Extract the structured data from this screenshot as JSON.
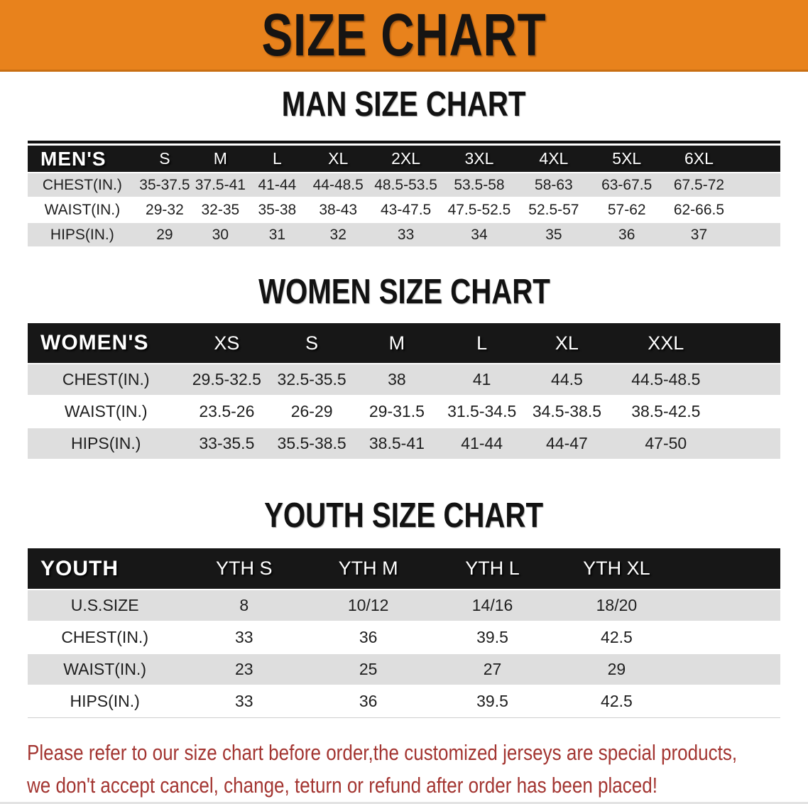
{
  "theme": {
    "banner_bg": "#E8821C",
    "banner_text": "#161413",
    "header_bg": "#171717",
    "header_text": "#FFFFFF",
    "row_gray": "#DEDEDE",
    "disclaimer_red": "#A33531"
  },
  "banner": {
    "title": "SIZE CHART"
  },
  "sections": {
    "men": {
      "title": "MAN SIZE CHART",
      "table": {
        "label": "MEN'S",
        "columns": [
          "S",
          "M",
          "L",
          "XL",
          "2XL",
          "3XL",
          "4XL",
          "5XL",
          "6XL"
        ],
        "rows": [
          {
            "label": "CHEST(IN.)",
            "shade": "gray",
            "values": [
              "35-37.5",
              "37.5-41",
              "41-44",
              "44-48.5",
              "48.5-53.5",
              "53.5-58",
              "58-63",
              "63-67.5",
              "67.5-72"
            ]
          },
          {
            "label": "WAIST(IN.)",
            "shade": "white",
            "values": [
              "29-32",
              "32-35",
              "35-38",
              "38-43",
              "43-47.5",
              "47.5-52.5",
              "52.5-57",
              "57-62",
              "62-66.5"
            ]
          },
          {
            "label": "HIPS(IN.)",
            "shade": "gray",
            "values": [
              "29",
              "30",
              "31",
              "32",
              "33",
              "34",
              "35",
              "36",
              "37"
            ]
          }
        ]
      }
    },
    "women": {
      "title": "WOMEN SIZE CHART",
      "table": {
        "label": "WOMEN'S",
        "columns": [
          "XS",
          "S",
          "M",
          "L",
          "XL",
          "XXL"
        ],
        "rows": [
          {
            "label": "CHEST(IN.)",
            "shade": "gray",
            "values": [
              "29.5-32.5",
              "32.5-35.5",
              "38",
              "41",
              "44.5",
              "44.5-48.5"
            ]
          },
          {
            "label": "WAIST(IN.)",
            "shade": "white",
            "values": [
              "23.5-26",
              "26-29",
              "29-31.5",
              "31.5-34.5",
              "34.5-38.5",
              "38.5-42.5"
            ]
          },
          {
            "label": "HIPS(IN.)",
            "shade": "gray",
            "values": [
              "33-35.5",
              "35.5-38.5",
              "38.5-41",
              "41-44",
              "44-47",
              "47-50"
            ]
          }
        ]
      }
    },
    "youth": {
      "title": "YOUTH SIZE CHART",
      "table": {
        "label": "YOUTH",
        "columns": [
          "YTH S",
          "YTH M",
          "YTH L",
          "YTH XL"
        ],
        "rows": [
          {
            "label": "U.S.SIZE",
            "shade": "gray",
            "values": [
              "8",
              "10/12",
              "14/16",
              "18/20"
            ]
          },
          {
            "label": "CHEST(IN.)",
            "shade": "white",
            "values": [
              "33",
              "36",
              "39.5",
              "42.5"
            ]
          },
          {
            "label": "WAIST(IN.)",
            "shade": "gray",
            "values": [
              "23",
              "25",
              "27",
              "29"
            ]
          },
          {
            "label": "HIPS(IN.)",
            "shade": "white",
            "values": [
              "33",
              "36",
              "39.5",
              "42.5"
            ]
          }
        ]
      }
    }
  },
  "disclaimer": {
    "line1": "Please refer to our size chart before order,the customized jerseys are special products,",
    "line2": "we don't accept cancel, change, teturn or refund after order has been placed!"
  }
}
